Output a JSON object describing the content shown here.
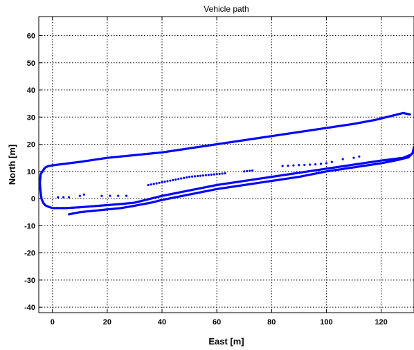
{
  "chart_data": {
    "type": "scatter",
    "title": "Vehicle path",
    "xlabel": "East [m]",
    "ylabel": "North [m]",
    "xlim": [
      -5,
      132
    ],
    "ylim": [
      -42,
      67
    ],
    "grid": true,
    "xticks": [
      0,
      20,
      40,
      60,
      80,
      100,
      120
    ],
    "yticks": [
      -40,
      -30,
      -20,
      -10,
      0,
      10,
      20,
      30,
      40,
      50,
      60
    ],
    "series": [
      {
        "color": "#0000ff",
        "marker": "dot",
        "segments": [
          {
            "x": [
              130.5,
              128,
              124,
              118,
              110,
              100,
              90,
              80,
              70,
              60,
              50,
              40,
              30,
              20,
              10,
              2,
              -1.5,
              -2.5,
              -3
            ],
            "y": [
              31,
              31.5,
              30.5,
              29,
              27.5,
              26,
              24.5,
              23,
              21.5,
              20,
              18.5,
              17,
              16,
              15,
              13.5,
              12.5,
              12,
              11.5,
              11
            ]
          },
          {
            "x": [
              -3,
              -4.3,
              -4.6,
              -4.4,
              -4,
              -3.4,
              -2.6,
              -1.5,
              0,
              1.5
            ],
            "y": [
              11,
              9,
              6,
              3,
              0,
              -1.5,
              -2.5,
              -3,
              -3.5,
              -3.5
            ]
          },
          {
            "x": [
              1.5,
              5,
              10,
              15,
              20,
              25,
              30,
              40,
              50,
              60,
              70,
              80,
              90,
              100,
              110,
              120,
              128,
              130.5
            ],
            "y": [
              -3.5,
              -3.5,
              -3.2,
              -2.8,
              -2.4,
              -2,
              -1.5,
              1,
              3,
              5,
              6.5,
              8,
              9.5,
              11,
              12.5,
              14,
              15,
              16
            ]
          },
          {
            "x": [
              6,
              10,
              15,
              20,
              25,
              28,
              36,
              40,
              50,
              60,
              70,
              80,
              90,
              100,
              110,
              120,
              126,
              130,
              131.5,
              132
            ],
            "y": [
              -5.8,
              -5,
              -4.5,
              -4,
              -3.5,
              -3,
              -1.5,
              -0.5,
              1.5,
              3.5,
              5,
              6.5,
              8,
              10,
              11.5,
              13,
              14.2,
              15.2,
              16.8,
              19
            ]
          },
          {
            "x": [
              2,
              4,
              6,
              10,
              11.5,
              18,
              21,
              24,
              27,
              35,
              36,
              37,
              38,
              39,
              40,
              41,
              42,
              43,
              44,
              45,
              46,
              47,
              48,
              49,
              50,
              51,
              52,
              53,
              54,
              55,
              56,
              57,
              58,
              59,
              60,
              61,
              62,
              63,
              70,
              71,
              72,
              73,
              84,
              86,
              88,
              90,
              92,
              94,
              96,
              98,
              100,
              102,
              106,
              110,
              112
            ],
            "y": [
              0.5,
              0.5,
              0.5,
              1,
              1.5,
              1,
              1,
              1,
              1,
              5,
              5.2,
              5.4,
              5.6,
              5.8,
              6,
              6.2,
              6.4,
              6.6,
              6.8,
              7,
              7.2,
              7.4,
              7.6,
              7.8,
              8,
              8.1,
              8.2,
              8.3,
              8.4,
              8.5,
              8.6,
              8.7,
              8.8,
              8.9,
              9,
              9.1,
              9.2,
              9.3,
              10,
              10.1,
              10.2,
              10.3,
              12,
              12.1,
              12.2,
              12.3,
              12.4,
              12.5,
              12.6,
              12.8,
              13,
              13.5,
              14.5,
              15,
              15.5
            ]
          }
        ]
      }
    ]
  }
}
